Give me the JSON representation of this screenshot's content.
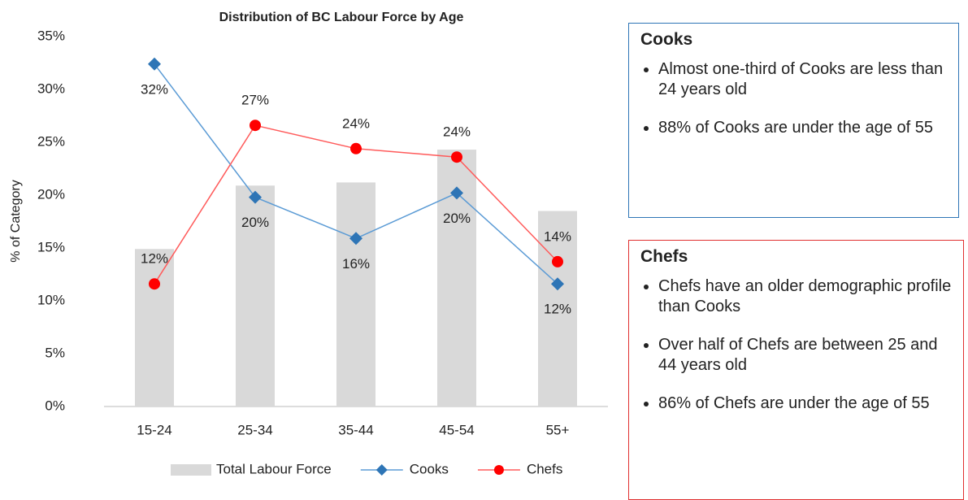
{
  "chart_data": {
    "type": "bar",
    "title": "Distribution of BC Labour Force by Age",
    "y_label": "% of Category",
    "categories": [
      "15-24",
      "25-34",
      "35-44",
      "45-54",
      "55+"
    ],
    "series": [
      {
        "name": "Total Labour Force",
        "type": "bar",
        "color": "#d9d9d9",
        "values": [
          14.9,
          20.9,
          21.2,
          24.3,
          18.5
        ]
      },
      {
        "name": "Cooks",
        "type": "line",
        "color": "#5b9bd5",
        "marker_color": "#2e75b6",
        "marker": "diamond",
        "values": [
          32.4,
          19.8,
          15.9,
          20.2,
          11.6
        ],
        "value_labels": [
          "32%",
          "20%",
          "16%",
          "20%",
          "12%"
        ]
      },
      {
        "name": "Chefs",
        "type": "line",
        "color": "#ff5b5b",
        "marker_color": "#ff0000",
        "marker": "circle",
        "values": [
          11.6,
          26.6,
          24.4,
          23.6,
          13.7
        ],
        "value_labels": [
          "12%",
          "27%",
          "24%",
          "24%",
          "14%"
        ]
      }
    ],
    "ylim": [
      0,
      35
    ],
    "yticks": [
      {
        "value": 0,
        "label": "0%"
      },
      {
        "value": 5,
        "label": "5%"
      },
      {
        "value": 10,
        "label": "10%"
      },
      {
        "value": 15,
        "label": "15%"
      },
      {
        "value": 20,
        "label": "20%"
      },
      {
        "value": 25,
        "label": "25%"
      },
      {
        "value": 30,
        "label": "30%"
      },
      {
        "value": 35,
        "label": "35%"
      }
    ],
    "grid": false,
    "legend": "bottom"
  },
  "panels": [
    {
      "title": "Cooks",
      "bullets": [
        "Almost one-third of Cooks are less than 24 years old",
        "88% of Cooks are under the age of 55"
      ]
    },
    {
      "title": "Chefs",
      "bullets": [
        "Chefs have an older demographic profile than Cooks",
        "Over half of Chefs are between 25 and 44 years old",
        "86% of Chefs are under the age of 55"
      ]
    }
  ]
}
